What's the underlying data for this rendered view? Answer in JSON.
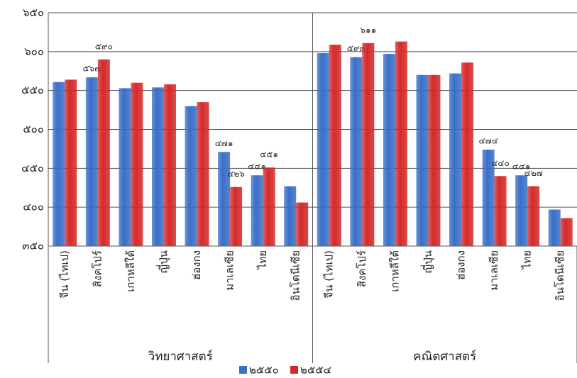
{
  "chart_data": {
    "type": "bar",
    "groups": [
      {
        "name": "วิทยาศาสตร์",
        "categories": [
          "จีน (ไทเป)",
          "สิงคโปร์",
          "เกาหลีใต้",
          "ญี่ปุ่น",
          "ฮ่องกง",
          "มาเลเซีย",
          "ไทย",
          "อินโดนีเซีย"
        ]
      },
      {
        "name": "คณิตศาสตร์",
        "categories": [
          "จีน (ไทเป)",
          "สิงคโปร์",
          "เกาหลีใต้",
          "ญี่ปุ่น",
          "ฮ่องกง",
          "มาเลเซีย",
          "ไทย",
          "อินโดนีเซีย"
        ]
      }
    ],
    "series": [
      {
        "name": "๒๕๕๐",
        "color": "#3a6fc8",
        "values": [
          561,
          567,
          553,
          554,
          530,
          471,
          441,
          427,
          598,
          593,
          597,
          570,
          572,
          474,
          441,
          397
        ],
        "value_labels": [
          null,
          "๕๖๗",
          null,
          null,
          null,
          "๔๗๑",
          "๔๔๑",
          null,
          null,
          "๕๙๓",
          null,
          null,
          null,
          "๔๗๔",
          "๔๔๑",
          null
        ]
      },
      {
        "name": "๒๕๕๔",
        "color": "#d42a2a",
        "values": [
          564,
          590,
          560,
          558,
          535,
          426,
          451,
          406,
          609,
          611,
          613,
          570,
          586,
          440,
          427,
          386
        ],
        "value_labels": [
          null,
          "๕๙๐",
          null,
          null,
          null,
          "๔๒๖",
          "๔๕๑",
          null,
          null,
          "๖๑๑",
          null,
          null,
          null,
          "๔๔๐",
          "๔๒๗",
          null
        ]
      }
    ],
    "ylim": [
      350,
      650
    ],
    "yticks": [
      {
        "value": 350,
        "label": "๓๕๐"
      },
      {
        "value": 400,
        "label": "๔๐๐"
      },
      {
        "value": 450,
        "label": "๔๕๐"
      },
      {
        "value": 500,
        "label": "๕๐๐"
      },
      {
        "value": 550,
        "label": "๕๕๐"
      },
      {
        "value": 600,
        "label": "๖๐๐"
      },
      {
        "value": 650,
        "label": "๖๕๐"
      }
    ],
    "grid": true,
    "legend": "bottom"
  }
}
